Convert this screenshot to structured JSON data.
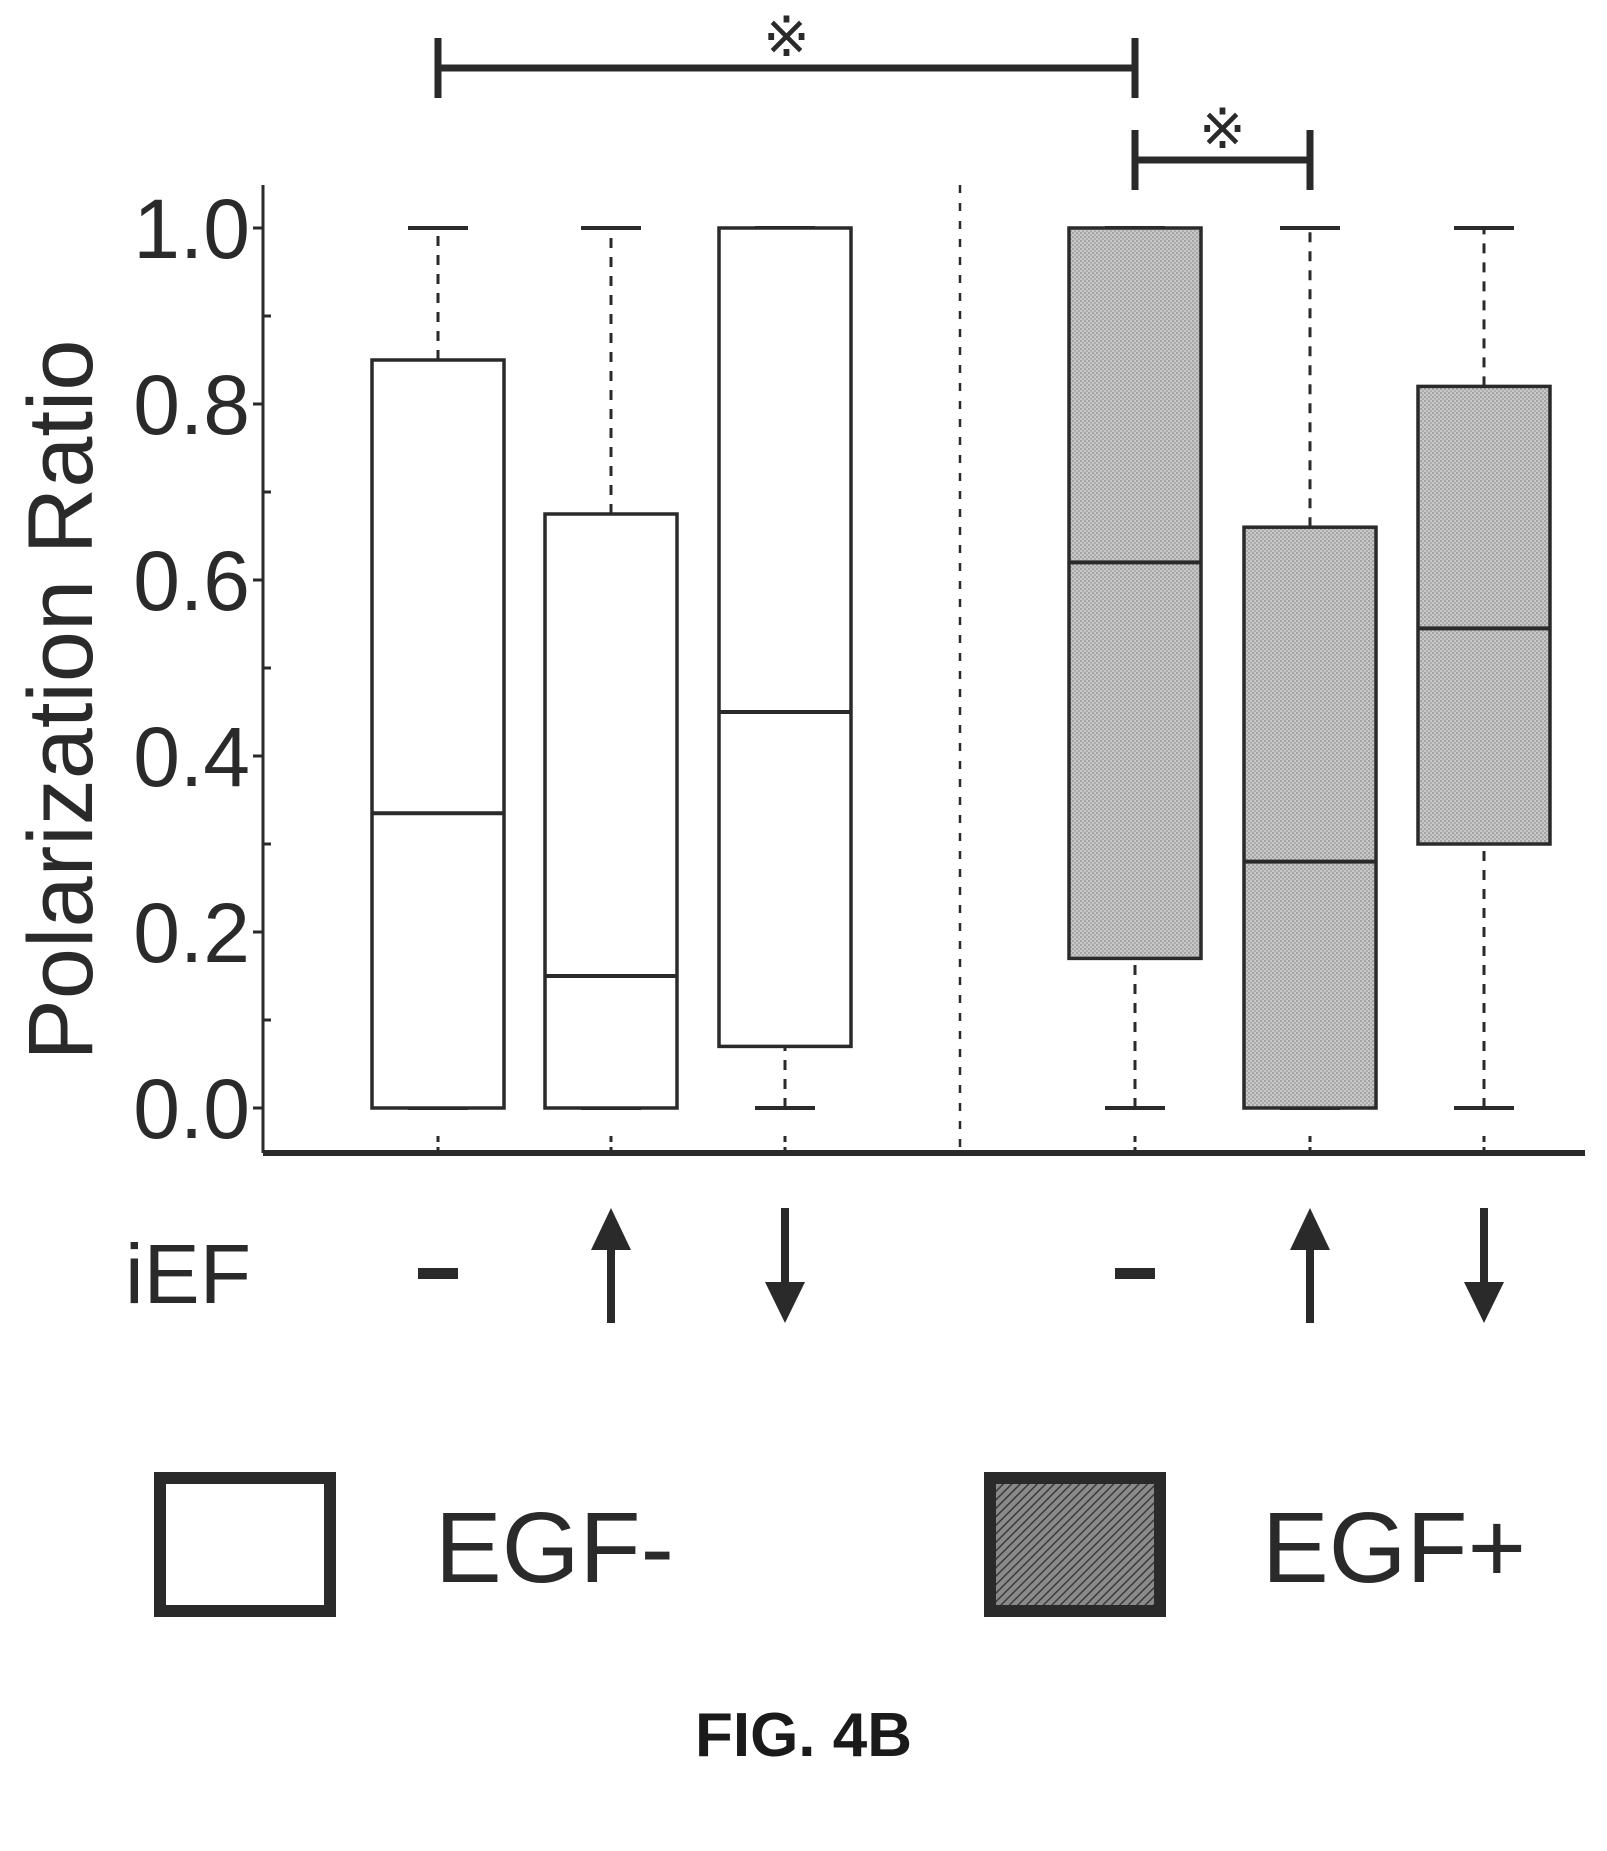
{
  "caption": "FIG. 4B",
  "colors": {
    "egf_minus_fill": "#ffffff",
    "egf_plus_fill": "#c4c4c4",
    "stroke": "#2a2a2a"
  },
  "chart_data": {
    "type": "box",
    "ylabel": "Polarization Ratio",
    "ylim": [
      0.0,
      1.0
    ],
    "yticks": [
      "0.0",
      "0.2",
      "0.4",
      "0.6",
      "0.8",
      "1.0"
    ],
    "ytick_values": [
      0.0,
      0.2,
      0.4,
      0.6,
      0.8,
      1.0
    ],
    "grid": false,
    "x_row_label": "iEF",
    "groups_separated_by_dashed_line": true,
    "boxes": [
      {
        "series": "EGF-",
        "iEF": "-",
        "whisker_low": 0.0,
        "q1": 0.0,
        "median": 0.335,
        "q3": 0.85,
        "whisker_high": 1.0
      },
      {
        "series": "EGF-",
        "iEF": "up-arrow",
        "whisker_low": 0.0,
        "q1": 0.0,
        "median": 0.15,
        "q3": 0.675,
        "whisker_high": 1.0
      },
      {
        "series": "EGF-",
        "iEF": "down-arrow",
        "whisker_low": 0.0,
        "q1": 0.07,
        "median": 0.45,
        "q3": 1.0,
        "whisker_high": 1.0
      },
      {
        "series": "EGF+",
        "iEF": "-",
        "whisker_low": 0.0,
        "q1": 0.17,
        "median": 0.62,
        "q3": 1.0,
        "whisker_high": 1.0
      },
      {
        "series": "EGF+",
        "iEF": "up-arrow",
        "whisker_low": 0.0,
        "q1": 0.0,
        "median": 0.28,
        "q3": 0.66,
        "whisker_high": 1.0
      },
      {
        "series": "EGF+",
        "iEF": "down-arrow",
        "whisker_low": 0.0,
        "q1": 0.3,
        "median": 0.545,
        "q3": 0.82,
        "whisker_high": 1.0
      }
    ],
    "significance": [
      {
        "from_box": 0,
        "to_box": 3,
        "label": "※"
      },
      {
        "from_box": 3,
        "to_box": 4,
        "label": "※"
      }
    ],
    "legend": {
      "placement": "bottom",
      "entries": [
        {
          "label": "EGF-",
          "series": "EGF-"
        },
        {
          "label": "EGF+",
          "series": "EGF+"
        }
      ]
    }
  }
}
